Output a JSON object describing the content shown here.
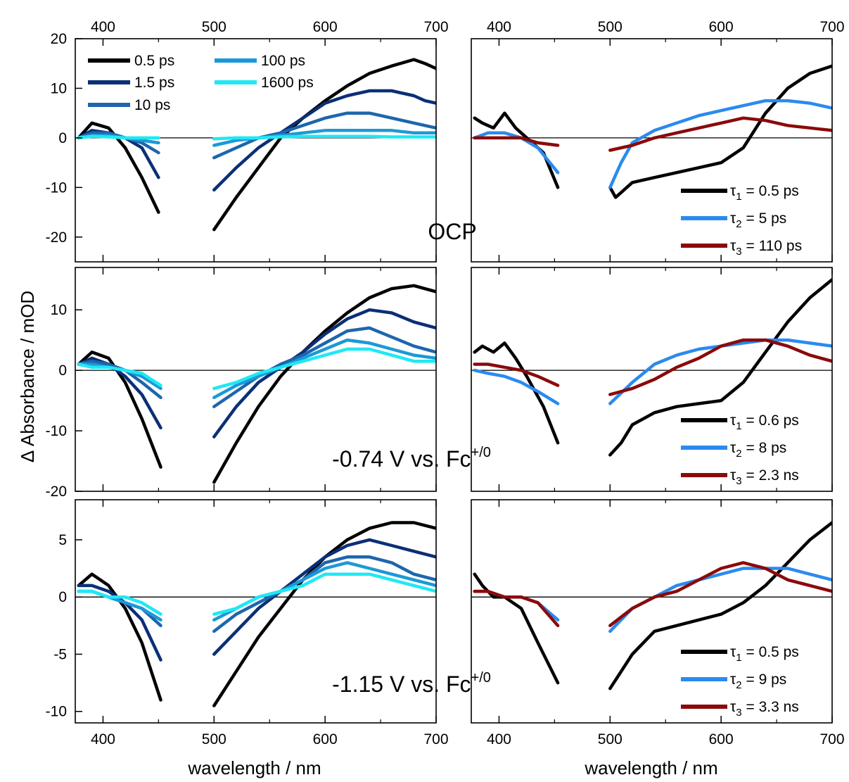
{
  "figure": {
    "ylabel": "Δ Absorbance / mOD",
    "xlabel_left": "wavelength / nm",
    "xlabel_right": "wavelength / nm"
  },
  "colors": {
    "0.5 ps": "#000000",
    "1.5 ps": "#0b2f77",
    "10 ps": "#1d66ad",
    "100 ps": "#1c99d6",
    "1600 ps": "#1fe8f4",
    "tau1": "#000000",
    "tau2": "#2b8aef",
    "tau3": "#8b0a0a"
  },
  "chart_data": [
    {
      "type": "line",
      "row": 1,
      "col": "left",
      "xlim": [
        375,
        700
      ],
      "ylim": [
        -25,
        20
      ],
      "xticks": [
        400,
        500,
        600,
        700
      ],
      "yticks": [
        -20,
        -10,
        0,
        10,
        20
      ],
      "annotation": "OCP",
      "legend": {
        "placement": "top-left, two columns",
        "entries": [
          "0.5 ps",
          "1.5 ps",
          "10 ps",
          "100 ps",
          "1600 ps"
        ]
      },
      "series": [
        {
          "name": "0.5 ps",
          "x": [
            378,
            390,
            405,
            420,
            435,
            450,
            500,
            520,
            540,
            560,
            580,
            600,
            620,
            640,
            660,
            680,
            690,
            700
          ],
          "y": [
            0,
            3,
            2,
            -2,
            -8,
            -15,
            -18.5,
            -12,
            -6,
            0,
            4,
            7.5,
            10.5,
            13,
            14.5,
            15.8,
            15,
            14
          ]
        },
        {
          "name": "1.5 ps",
          "x": [
            378,
            390,
            405,
            420,
            435,
            450,
            500,
            520,
            540,
            560,
            580,
            600,
            620,
            640,
            660,
            680,
            690,
            700
          ],
          "y": [
            0,
            1.5,
            1,
            0,
            -2,
            -8,
            -10.5,
            -6,
            -2,
            1,
            4,
            7,
            8.5,
            9.5,
            9.5,
            8.5,
            7.5,
            7
          ]
        },
        {
          "name": "10 ps",
          "x": [
            378,
            390,
            405,
            420,
            435,
            450,
            500,
            520,
            540,
            560,
            580,
            600,
            620,
            640,
            660,
            680,
            690,
            700
          ],
          "y": [
            0,
            1,
            1,
            0,
            -1,
            -3,
            -4,
            -2,
            0,
            1,
            2.5,
            4,
            5,
            5,
            4,
            3,
            2.5,
            2
          ]
        },
        {
          "name": "100 ps",
          "x": [
            378,
            390,
            405,
            420,
            435,
            450,
            500,
            520,
            540,
            560,
            580,
            600,
            620,
            640,
            660,
            680,
            690,
            700
          ],
          "y": [
            0,
            0.5,
            0.5,
            0,
            -0.5,
            -1,
            -1.5,
            -0.5,
            0,
            0.5,
            1,
            1.5,
            1.5,
            1.5,
            1.5,
            1,
            1,
            1
          ]
        },
        {
          "name": "1600 ps",
          "x": [
            378,
            390,
            405,
            420,
            435,
            450,
            500,
            520,
            540,
            560,
            580,
            600,
            620,
            640,
            660,
            680,
            690,
            700
          ],
          "y": [
            0,
            0.3,
            0.2,
            0,
            0,
            0,
            -0.2,
            0,
            0,
            0.2,
            0.3,
            0.3,
            0.3,
            0.3,
            0.2,
            0.2,
            0.2,
            0.2
          ]
        }
      ]
    },
    {
      "type": "line",
      "row": 1,
      "col": "right",
      "xlim": [
        375,
        700
      ],
      "ylim": [
        -25,
        20
      ],
      "xticks": [
        400,
        500,
        600,
        700
      ],
      "legend": {
        "placement": "bottom-right",
        "entries": [
          "τ1 = 0.5 ps",
          "τ2 = 5 ps",
          "τ3 = 110 ps"
        ]
      },
      "series": [
        {
          "name": "τ1 = 0.5 ps",
          "x": [
            378,
            385,
            395,
            405,
            415,
            425,
            440,
            453,
            500,
            505,
            510,
            520,
            540,
            560,
            580,
            600,
            620,
            640,
            660,
            680,
            700
          ],
          "y": [
            4,
            3,
            2,
            5,
            2,
            0,
            -3,
            -10,
            -10,
            -12,
            -11,
            -9,
            -8,
            -7,
            -6,
            -5,
            -2,
            5,
            10,
            13,
            14.5
          ]
        },
        {
          "name": "τ2 = 5 ps",
          "x": [
            378,
            390,
            405,
            420,
            435,
            453,
            500,
            510,
            520,
            540,
            560,
            580,
            600,
            620,
            640,
            660,
            680,
            700
          ],
          "y": [
            0,
            1,
            1,
            0,
            -2,
            -7,
            -10,
            -5,
            -1,
            1.5,
            3,
            4.5,
            5.5,
            6.5,
            7.5,
            7.5,
            7,
            6
          ]
        },
        {
          "name": "τ3 = 110 ps",
          "x": [
            378,
            390,
            405,
            420,
            435,
            453,
            500,
            520,
            540,
            560,
            580,
            600,
            620,
            640,
            660,
            680,
            700
          ],
          "y": [
            0,
            0,
            0,
            0,
            -1,
            -1.5,
            -2.5,
            -1.5,
            0,
            1,
            2,
            3,
            4,
            3.5,
            2.5,
            2,
            1.5
          ]
        }
      ]
    },
    {
      "type": "line",
      "row": 2,
      "col": "left",
      "xlim": [
        375,
        700
      ],
      "ylim": [
        -20,
        17
      ],
      "xticks": [
        400,
        500,
        600,
        700
      ],
      "yticks": [
        -20,
        -10,
        0,
        10
      ],
      "annotation": "-0.74 V vs. Fc+/0",
      "series": [
        {
          "name": "0.5 ps",
          "x": [
            378,
            390,
            405,
            420,
            435,
            452,
            500,
            520,
            540,
            560,
            580,
            600,
            620,
            640,
            660,
            680,
            700
          ],
          "y": [
            1,
            3,
            2,
            -2,
            -8,
            -16,
            -18.5,
            -12,
            -6,
            -1,
            3,
            6.5,
            9.5,
            12,
            13.5,
            14,
            13
          ]
        },
        {
          "name": "1.5 ps",
          "x": [
            378,
            390,
            405,
            420,
            435,
            452,
            500,
            520,
            540,
            560,
            580,
            600,
            620,
            640,
            660,
            680,
            700
          ],
          "y": [
            1,
            2,
            1,
            -1,
            -4,
            -9.5,
            -11,
            -6,
            -2,
            0.5,
            3,
            6,
            8.5,
            10,
            9.5,
            8,
            7
          ]
        },
        {
          "name": "10 ps",
          "x": [
            378,
            390,
            405,
            420,
            435,
            452,
            500,
            520,
            540,
            560,
            580,
            600,
            620,
            640,
            660,
            680,
            700
          ],
          "y": [
            1,
            1.5,
            1,
            0,
            -2,
            -4.5,
            -6,
            -3.5,
            -1,
            1,
            2.5,
            4.5,
            6.5,
            7,
            5.5,
            4,
            3
          ]
        },
        {
          "name": "100 ps",
          "x": [
            378,
            390,
            405,
            420,
            435,
            452,
            500,
            520,
            540,
            560,
            580,
            600,
            620,
            640,
            660,
            680,
            700
          ],
          "y": [
            1,
            1,
            0.5,
            0,
            -1,
            -3,
            -4.5,
            -2.5,
            -1,
            0.5,
            2,
            3.5,
            5,
            4.5,
            3.5,
            2.5,
            2
          ]
        },
        {
          "name": "1600 ps",
          "x": [
            378,
            390,
            405,
            420,
            435,
            452,
            500,
            520,
            540,
            560,
            580,
            600,
            620,
            640,
            660,
            680,
            700
          ],
          "y": [
            1,
            0.5,
            0.5,
            0,
            -0.5,
            -2.5,
            -3,
            -2,
            -0.5,
            0.5,
            1.5,
            2.5,
            3.5,
            3.5,
            2.5,
            1.5,
            1.5
          ]
        }
      ]
    },
    {
      "type": "line",
      "row": 2,
      "col": "right",
      "xlim": [
        375,
        700
      ],
      "ylim": [
        -20,
        17
      ],
      "xticks": [
        400,
        500,
        600,
        700
      ],
      "legend": {
        "placement": "bottom-right",
        "entries": [
          "τ1 = 0.6 ps",
          "τ2 = 8 ps",
          "τ3 = 2.3 ns"
        ]
      },
      "series": [
        {
          "name": "τ1 = 0.6 ps",
          "x": [
            378,
            385,
            395,
            405,
            415,
            425,
            440,
            453,
            500,
            510,
            520,
            540,
            560,
            580,
            600,
            620,
            640,
            660,
            680,
            700
          ],
          "y": [
            3,
            4,
            3,
            4.5,
            2,
            -1,
            -6,
            -12,
            -14,
            -12,
            -9,
            -7,
            -6,
            -5.5,
            -5,
            -2,
            3,
            8,
            12,
            15
          ]
        },
        {
          "name": "τ2 = 8 ps",
          "x": [
            378,
            390,
            405,
            420,
            435,
            453,
            500,
            520,
            540,
            560,
            580,
            600,
            620,
            640,
            660,
            680,
            700
          ],
          "y": [
            0,
            -0.5,
            -1,
            -2,
            -3.5,
            -5.5,
            -5.5,
            -2,
            1,
            2.5,
            3.5,
            4,
            4.5,
            5,
            5,
            4.5,
            4
          ]
        },
        {
          "name": "τ3 = 2.3 ns",
          "x": [
            378,
            390,
            405,
            420,
            435,
            453,
            500,
            520,
            540,
            560,
            580,
            600,
            620,
            640,
            660,
            680,
            700
          ],
          "y": [
            1,
            1,
            0.5,
            0,
            -1,
            -2.5,
            -4,
            -3,
            -1.5,
            0.5,
            2,
            4,
            5,
            5,
            4,
            2.5,
            1.5
          ]
        }
      ]
    },
    {
      "type": "line",
      "row": 3,
      "col": "left",
      "xlim": [
        375,
        700
      ],
      "ylim": [
        -11,
        8.5
      ],
      "xticks": [
        400,
        500,
        600,
        700
      ],
      "yticks": [
        -10,
        -5,
        0,
        5
      ],
      "xticklabels_shown": true,
      "annotation": "-1.15 V vs. Fc+/0",
      "series": [
        {
          "name": "0.5 ps",
          "x": [
            378,
            390,
            405,
            420,
            435,
            452,
            500,
            520,
            540,
            560,
            580,
            600,
            620,
            640,
            660,
            680,
            700
          ],
          "y": [
            1,
            2,
            1,
            -1,
            -4,
            -9,
            -9.5,
            -6.5,
            -3.5,
            -1,
            1.5,
            3.5,
            5,
            6,
            6.5,
            6.5,
            6
          ]
        },
        {
          "name": "1.5 ps",
          "x": [
            378,
            390,
            405,
            420,
            435,
            452,
            500,
            520,
            540,
            560,
            580,
            600,
            620,
            640,
            660,
            680,
            700
          ],
          "y": [
            1,
            1,
            0.5,
            -0.5,
            -2,
            -5.5,
            -5,
            -3,
            -1,
            0.5,
            2,
            3.5,
            4.5,
            5,
            4.5,
            4,
            3.5
          ]
        },
        {
          "name": "10 ps",
          "x": [
            378,
            390,
            405,
            420,
            435,
            452,
            500,
            520,
            540,
            560,
            580,
            600,
            620,
            640,
            660,
            680,
            700
          ],
          "y": [
            0.5,
            0.5,
            0,
            -0.5,
            -1,
            -2.5,
            -3,
            -1.5,
            -0.5,
            0.5,
            1.5,
            3,
            3.5,
            3.5,
            3,
            2,
            1.5
          ]
        },
        {
          "name": "100 ps",
          "x": [
            378,
            390,
            405,
            420,
            435,
            452,
            500,
            520,
            540,
            560,
            580,
            600,
            620,
            640,
            660,
            680,
            700
          ],
          "y": [
            0.5,
            0.5,
            0,
            -0.5,
            -1,
            -2,
            -2,
            -1,
            0,
            0.5,
            1.5,
            2.5,
            3,
            2.5,
            2,
            1.5,
            1
          ]
        },
        {
          "name": "1600 ps",
          "x": [
            378,
            390,
            405,
            420,
            435,
            452,
            500,
            520,
            540,
            560,
            580,
            600,
            620,
            640,
            660,
            680,
            700
          ],
          "y": [
            0.5,
            0.5,
            0,
            0,
            -0.5,
            -1.5,
            -1.5,
            -1,
            0,
            0.5,
            1,
            2,
            2,
            2,
            1.5,
            1,
            0.5
          ]
        }
      ]
    },
    {
      "type": "line",
      "row": 3,
      "col": "right",
      "xlim": [
        375,
        700
      ],
      "ylim": [
        -11,
        8.5
      ],
      "xticks": [
        400,
        500,
        600,
        700
      ],
      "xticklabels_shown": true,
      "legend": {
        "placement": "bottom-right",
        "entries": [
          "τ1 = 0.5 ps",
          "τ2 = 9 ps",
          "τ3 = 3.3 ns"
        ]
      },
      "series": [
        {
          "name": "τ1 = 0.5 ps",
          "x": [
            378,
            385,
            395,
            405,
            420,
            435,
            453,
            500,
            520,
            540,
            560,
            580,
            600,
            620,
            640,
            660,
            680,
            700
          ],
          "y": [
            2,
            1,
            0,
            0,
            -1,
            -4,
            -7.5,
            -8,
            -5,
            -3,
            -2.5,
            -2,
            -1.5,
            -0.5,
            1,
            3,
            5,
            6.5
          ]
        },
        {
          "name": "τ2 = 9 ps",
          "x": [
            378,
            390,
            405,
            420,
            435,
            453,
            500,
            520,
            540,
            560,
            580,
            600,
            620,
            640,
            660,
            680,
            700
          ],
          "y": [
            0.5,
            0.5,
            0,
            0,
            -0.5,
            -2,
            -3,
            -1,
            0,
            1,
            1.5,
            2,
            2.5,
            2.5,
            2.5,
            2,
            1.5
          ]
        },
        {
          "name": "τ3 = 3.3 ns",
          "x": [
            378,
            390,
            405,
            420,
            435,
            453,
            500,
            520,
            540,
            560,
            580,
            600,
            620,
            640,
            660,
            680,
            700
          ],
          "y": [
            0.5,
            0.5,
            0,
            0,
            -0.5,
            -2.5,
            -2.5,
            -1,
            0,
            0.5,
            1.5,
            2.5,
            3,
            2.5,
            1.5,
            1,
            0.5
          ]
        }
      ]
    }
  ]
}
